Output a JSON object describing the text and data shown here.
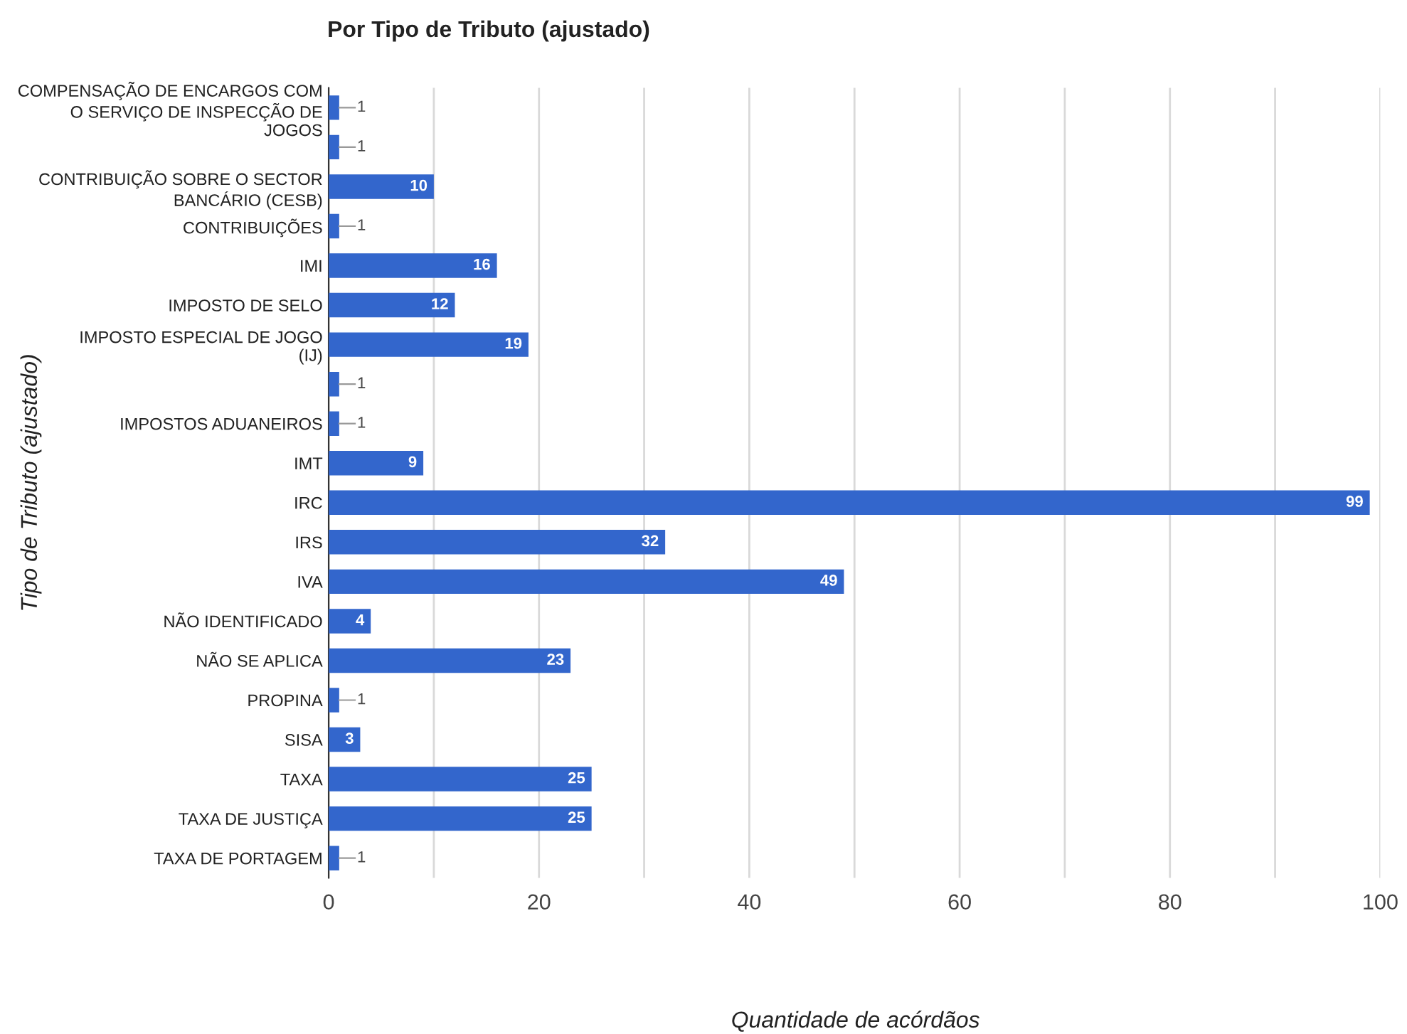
{
  "chart_data": {
    "type": "bar",
    "orientation": "horizontal",
    "title": "Por Tipo de Tributo (ajustado)",
    "xlabel": "Quantidade de acórdãos",
    "ylabel": "Tipo de Tributo (ajustado)",
    "categories": [
      "COMPENSAÇÃO DE ENCARGOS COM O SERVIÇO DE INSPECÇÃO DE JOGOS",
      null,
      "CONTRIBUIÇÃO SOBRE O SECTOR BANCÁRIO (CESB)",
      "CONTRIBUIÇÕES",
      "IMI",
      "IMPOSTO DE SELO",
      "IMPOSTO ESPECIAL DE JOGO (IJ)",
      null,
      "IMPOSTOS ADUANEIROS",
      "IMT",
      "IRC",
      "IRS",
      "IVA",
      "NÃO IDENTIFICADO",
      "NÃO SE APLICA",
      "PROPINA",
      "SISA",
      "TAXA",
      "TAXA DE JUSTIÇA",
      "TAXA DE PORTAGEM"
    ],
    "values": [
      1,
      1,
      10,
      1,
      16,
      12,
      19,
      1,
      1,
      9,
      99,
      32,
      49,
      4,
      23,
      1,
      3,
      25,
      25,
      1
    ],
    "color": "#3366cc",
    "data_labels": true,
    "grid": "x",
    "legend": false,
    "xlim": [
      0,
      100
    ],
    "xticks": [
      0,
      {
        "value": 10,
        "label": null
      },
      20,
      {
        "value": 30,
        "label": null
      },
      40,
      {
        "value": 50,
        "label": null
      },
      60,
      {
        "value": 70,
        "label": null
      },
      80,
      {
        "value": 90,
        "label": null
      },
      100
    ]
  }
}
